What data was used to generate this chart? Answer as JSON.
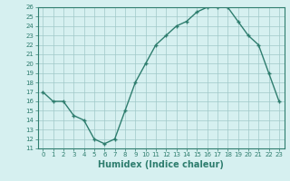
{
  "x": [
    0,
    1,
    2,
    3,
    4,
    5,
    6,
    7,
    8,
    9,
    10,
    11,
    12,
    13,
    14,
    15,
    16,
    17,
    18,
    19,
    20,
    21,
    22,
    23
  ],
  "y": [
    17,
    16,
    16,
    14.5,
    14,
    12,
    11.5,
    12,
    15,
    18,
    20,
    22,
    23,
    24,
    24.5,
    25.5,
    26,
    26,
    26,
    24.5,
    23,
    22,
    19,
    16
  ],
  "line_color": "#2e7d6e",
  "marker": "+",
  "marker_size": 3,
  "bg_color": "#d6f0f0",
  "grid_color": "#a0c8c8",
  "xlabel": "Humidex (Indice chaleur)",
  "xlabel_fontsize": 7,
  "xlim": [
    -0.5,
    23.5
  ],
  "ylim": [
    11,
    26
  ],
  "yticks": [
    11,
    12,
    13,
    14,
    15,
    16,
    17,
    18,
    19,
    20,
    21,
    22,
    23,
    24,
    25,
    26
  ],
  "xticks": [
    0,
    1,
    2,
    3,
    4,
    5,
    6,
    7,
    8,
    9,
    10,
    11,
    12,
    13,
    14,
    15,
    16,
    17,
    18,
    19,
    20,
    21,
    22,
    23
  ],
  "tick_fontsize": 5,
  "spine_color": "#2e7d6e",
  "tick_color": "#2e7d6e",
  "label_color": "#2e7d6e"
}
